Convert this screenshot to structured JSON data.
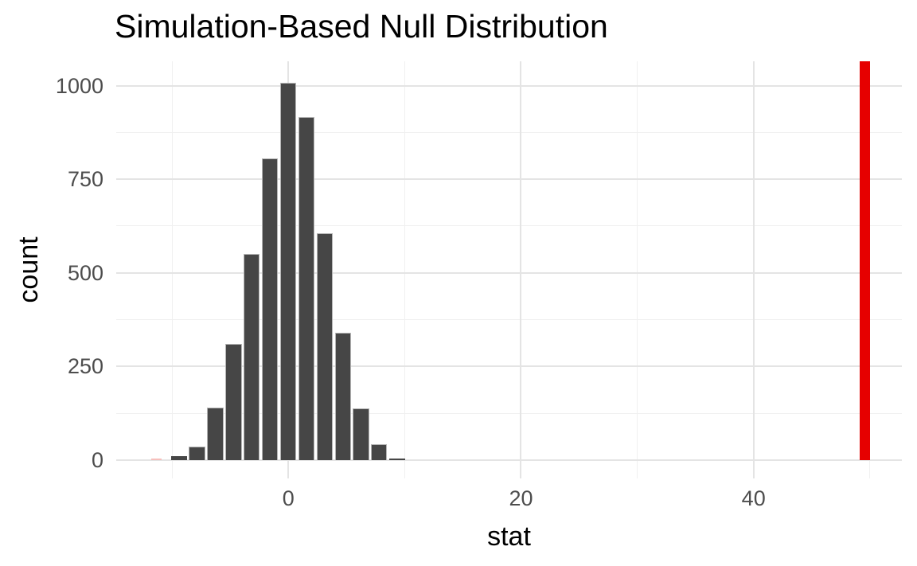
{
  "chart_data": {
    "type": "bar",
    "subtype": "histogram",
    "title": "Simulation-Based Null Distribution",
    "xlabel": "stat",
    "ylabel": "count",
    "xlim": [
      -14.8,
      52.75
    ],
    "ylim": [
      -49,
      1065
    ],
    "x_ticks": [
      0,
      20,
      40
    ],
    "y_ticks": [
      0,
      250,
      500,
      750,
      1000
    ],
    "x_minor_ticks": [
      -10,
      10,
      30,
      50
    ],
    "y_minor_ticks": [
      125,
      375,
      625,
      875
    ],
    "grid": true,
    "legend": "none",
    "bin_width": 1.57,
    "bars": [
      {
        "stat": -11.33,
        "count": 5,
        "color": "#f6bfbc",
        "width_frac": 0.57
      },
      {
        "stat": -9.41,
        "count": 10
      },
      {
        "stat": -7.85,
        "count": 36
      },
      {
        "stat": -6.28,
        "count": 140
      },
      {
        "stat": -4.71,
        "count": 310
      },
      {
        "stat": -3.15,
        "count": 550
      },
      {
        "stat": -1.58,
        "count": 805
      },
      {
        "stat": -0.02,
        "count": 1008
      },
      {
        "stat": 1.55,
        "count": 917
      },
      {
        "stat": 3.12,
        "count": 605
      },
      {
        "stat": 4.68,
        "count": 340
      },
      {
        "stat": 6.25,
        "count": 139
      },
      {
        "stat": 7.81,
        "count": 42
      },
      {
        "stat": 9.38,
        "count": 4
      }
    ],
    "bar_color": "#464646",
    "bar_edge_color": "#b5b5b5",
    "observed_line": {
      "stat": 49.6,
      "color": "#e60000"
    }
  },
  "colors": {
    "background": "#ffffff",
    "grid_major": "#e4e4e4",
    "grid_minor": "#f0f0f0",
    "axis_text": "#4d4d4d",
    "axis_title": "#000000",
    "title_text": "#000000"
  }
}
